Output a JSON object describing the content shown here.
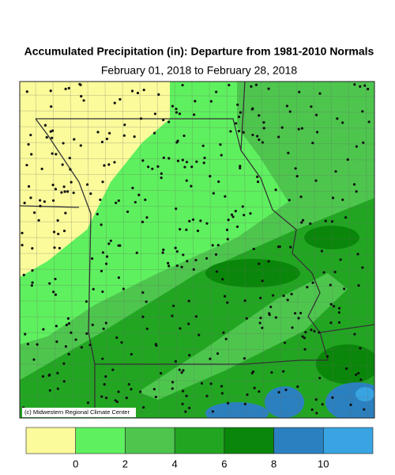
{
  "title": "Accumulated Precipitation (in): Departure from 1981-2010 Normals",
  "subtitle": "February 01, 2018 to February 28, 2018",
  "credit": "(c) Midwestern Regional Climate Center",
  "legend": {
    "colors": [
      "#fbfb9c",
      "#5ff05f",
      "#4ec64e",
      "#22a622",
      "#0a870a",
      "#2b80c0",
      "#38a4e2"
    ],
    "ticks": [
      0,
      2,
      4,
      6,
      8,
      10
    ]
  }
}
